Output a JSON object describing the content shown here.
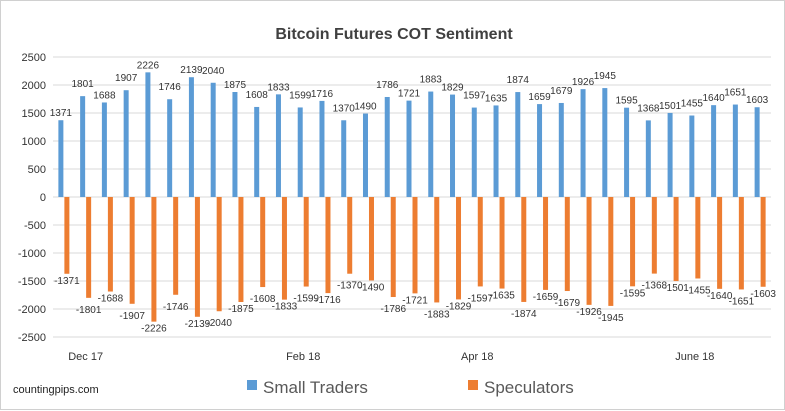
{
  "chart_data": {
    "type": "bar",
    "title": "Bitcoin Futures COT Sentiment",
    "xlabel": "",
    "ylabel": "",
    "ylim": [
      -2500,
      2500
    ],
    "yticks": [
      2500,
      2000,
      1500,
      1000,
      500,
      0,
      -500,
      -1000,
      -1500,
      -2000,
      -2500
    ],
    "grid": true,
    "legend_position": "bottom",
    "x_tick_labels": [
      {
        "index": 1,
        "label": "Dec 17"
      },
      {
        "index": 11,
        "label": "Feb 18"
      },
      {
        "index": 19,
        "label": "Apr 18"
      },
      {
        "index": 29,
        "label": "June 18"
      }
    ],
    "series": [
      {
        "name": "Small Traders",
        "color": "#5b9bd5",
        "values": [
          1371,
          1801,
          1688,
          1907,
          2226,
          1746,
          2139,
          2040,
          1875,
          1608,
          1833,
          1599,
          1716,
          1370,
          1490,
          1786,
          1721,
          1883,
          1829,
          1597,
          1635,
          1874,
          1659,
          1679,
          1926,
          1945,
          1595,
          1368,
          1501,
          1455,
          1640,
          1651,
          1603
        ]
      },
      {
        "name": "Speculators",
        "color": "#ed7d31",
        "values": [
          -1371,
          -1801,
          -1688,
          -1907,
          -2226,
          -1746,
          -2139,
          -2040,
          -1875,
          -1608,
          -1833,
          -1599,
          -1716,
          -1370,
          -1490,
          -1786,
          -1721,
          -1883,
          -1829,
          -1597,
          -1635,
          -1874,
          -1659,
          -1679,
          -1926,
          -1945,
          -1595,
          -1368,
          -1501,
          -1455,
          -1640,
          -1651,
          -1603
        ]
      }
    ]
  },
  "source": "countingpips.com"
}
